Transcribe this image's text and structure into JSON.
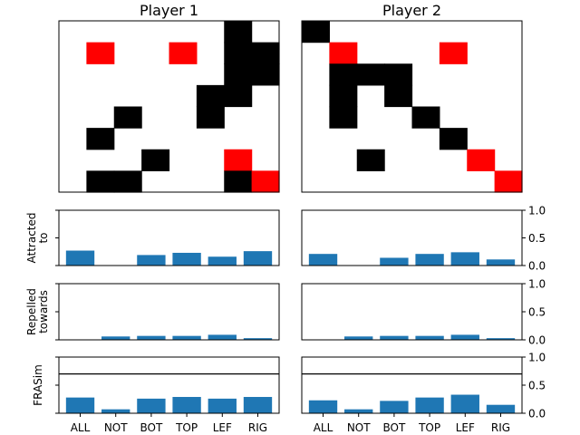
{
  "chart_data": {
    "type": "multi-panel: grid images + bar charts",
    "colors": {
      "on": "#000000",
      "highlight": "#ff0000",
      "bar": "#1f77b4",
      "threshold_line": "#000000"
    },
    "categories": [
      "ALL",
      "NOT",
      "BOT",
      "TOP",
      "LEF",
      "RIG"
    ],
    "players": [
      {
        "title": "Player 1",
        "grid_rows": 8,
        "grid_cols": 8,
        "grid": [
          "......#.",
          ".R..R.##",
          "......##",
          ".....##.",
          "..#..#..",
          ".#......",
          "...#..R.",
          ".##...#R"
        ],
        "attracted": [
          0.27,
          0.0,
          0.19,
          0.23,
          0.16,
          0.26
        ],
        "repelled": [
          0.0,
          0.06,
          0.07,
          0.07,
          0.09,
          0.03
        ],
        "frasim": [
          0.28,
          0.07,
          0.26,
          0.29,
          0.26,
          0.29
        ]
      },
      {
        "title": "Player 2",
        "grid_rows": 8,
        "grid_cols": 8,
        "grid": [
          "#.......",
          ".R...R..",
          ".###....",
          ".#.#....",
          ".#..#...",
          ".....#..",
          "..#...R.",
          ".......R"
        ],
        "attracted": [
          0.21,
          0.0,
          0.14,
          0.21,
          0.24,
          0.11
        ],
        "repelled": [
          0.0,
          0.06,
          0.07,
          0.07,
          0.09,
          0.03
        ],
        "frasim": [
          0.23,
          0.07,
          0.22,
          0.28,
          0.33,
          0.15
        ]
      }
    ],
    "rows": [
      {
        "key": "attracted",
        "ylabel": [
          "Attracted",
          "to"
        ],
        "ylim": [
          0,
          1
        ],
        "threshold": null
      },
      {
        "key": "repelled",
        "ylabel": [
          "Repelled",
          "towards"
        ],
        "ylim": [
          0,
          1
        ],
        "threshold": null
      },
      {
        "key": "frasim",
        "ylabel": [
          "FRASim"
        ],
        "ylim": [
          0,
          1
        ],
        "threshold": 0.7
      }
    ],
    "yticks": [
      0.0,
      0.5,
      1.0
    ],
    "ytick_labels": [
      "0.0",
      "0.5",
      "1.0"
    ]
  }
}
